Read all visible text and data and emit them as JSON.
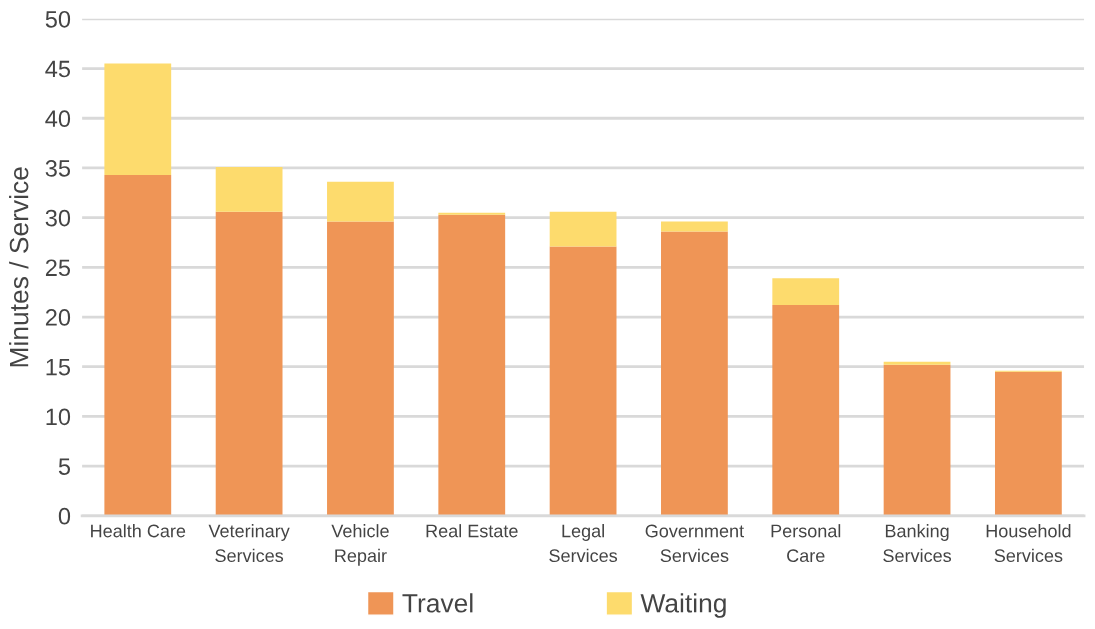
{
  "chart_data": {
    "type": "bar",
    "stacked": true,
    "ylabel": "Minutes / Service",
    "categories": [
      "Health Care",
      "Veterinary\nServices",
      "Vehicle\nRepair",
      "Real Estate",
      "Legal\nServices",
      "Government\nServices",
      "Personal\nCare",
      "Banking\nServices",
      "Household\nServices"
    ],
    "series": [
      {
        "name": "Travel",
        "color": "#ef9556",
        "values": [
          34.3,
          30.6,
          29.6,
          30.3,
          27.1,
          28.6,
          21.2,
          15.2,
          14.5
        ]
      },
      {
        "name": "Waiting",
        "color": "#fddb6d",
        "values": [
          11.2,
          4.5,
          4.0,
          0.2,
          3.5,
          1.0,
          2.7,
          0.3,
          0.1
        ]
      }
    ],
    "ylim": [
      0,
      50
    ],
    "yticks": [
      0,
      5,
      10,
      15,
      20,
      25,
      30,
      35,
      40,
      45,
      50
    ],
    "grid": "y",
    "legend": "bottom"
  }
}
